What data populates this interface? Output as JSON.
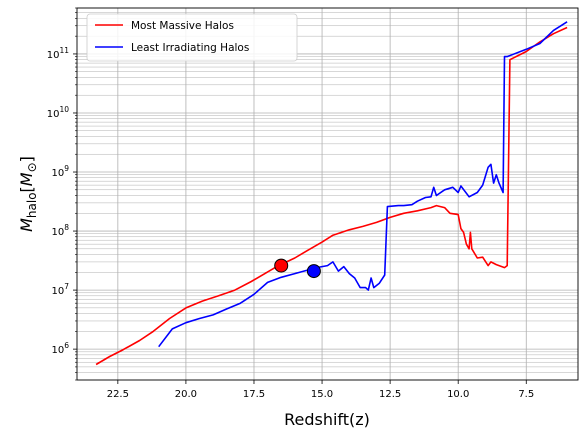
{
  "chart_data": {
    "type": "line",
    "title": "",
    "xlabel": "Redshift(z)",
    "ylabel": {
      "prefix": "M",
      "subscript": "halo",
      "bracket_open": "[",
      "inner": "M",
      "inner_sub": "⊙",
      "bracket_close": "]"
    },
    "x_inverted": true,
    "xlim": [
      24.0,
      5.6
    ],
    "ylim": [
      300000.0,
      600000000000.0
    ],
    "yscale": "log",
    "grid": true,
    "legend_position": "top-left",
    "x_ticks": [
      {
        "value": 22.5,
        "label": "22.5"
      },
      {
        "value": 20.0,
        "label": "20.0"
      },
      {
        "value": 17.5,
        "label": "17.5"
      },
      {
        "value": 15.0,
        "label": "15.0"
      },
      {
        "value": 12.5,
        "label": "12.5"
      },
      {
        "value": 10.0,
        "label": "10.0"
      },
      {
        "value": 7.5,
        "label": "7.5"
      }
    ],
    "y_ticks": [
      {
        "value": 1000000.0,
        "base": "10",
        "exp": "6"
      },
      {
        "value": 10000000.0,
        "base": "10",
        "exp": "7"
      },
      {
        "value": 100000000.0,
        "base": "10",
        "exp": "8"
      },
      {
        "value": 1000000000.0,
        "base": "10",
        "exp": "9"
      },
      {
        "value": 10000000000.0,
        "base": "10",
        "exp": "10"
      },
      {
        "value": 100000000000.0,
        "base": "10",
        "exp": "11"
      }
    ],
    "series": [
      {
        "name": "Most Massive Halos",
        "color": "#ff0000",
        "points": [
          [
            23.3,
            550000.0
          ],
          [
            22.8,
            750000.0
          ],
          [
            22.3,
            980000.0
          ],
          [
            21.7,
            1400000.0
          ],
          [
            21.2,
            2000000.0
          ],
          [
            20.6,
            3300000.0
          ],
          [
            20.0,
            5000000.0
          ],
          [
            19.4,
            6500000.0
          ],
          [
            18.8,
            8000000.0
          ],
          [
            18.2,
            10000000.0
          ],
          [
            17.6,
            14000000.0
          ],
          [
            17.1,
            19000000.0
          ],
          [
            16.6,
            26000000.0
          ],
          [
            16.0,
            35000000.0
          ],
          [
            15.5,
            48000000.0
          ],
          [
            15.0,
            65000000.0
          ],
          [
            14.6,
            85000000.0
          ],
          [
            14.0,
            105000000.0
          ],
          [
            13.5,
            120000000.0
          ],
          [
            13.0,
            140000000.0
          ],
          [
            12.5,
            170000000.0
          ],
          [
            12.0,
            200000000.0
          ],
          [
            11.5,
            220000000.0
          ],
          [
            11.0,
            250000000.0
          ],
          [
            10.8,
            270000000.0
          ],
          [
            10.5,
            250000000.0
          ],
          [
            10.3,
            200000000.0
          ],
          [
            10.0,
            190000000.0
          ],
          [
            9.9,
            110000000.0
          ],
          [
            9.8,
            95000000.0
          ],
          [
            9.7,
            60000000.0
          ],
          [
            9.6,
            50000000.0
          ],
          [
            9.55,
            95000000.0
          ],
          [
            9.5,
            50000000.0
          ],
          [
            9.3,
            35000000.0
          ],
          [
            9.1,
            36000000.0
          ],
          [
            8.9,
            26000000.0
          ],
          [
            8.8,
            30000000.0
          ],
          [
            8.6,
            27000000.0
          ],
          [
            8.4,
            25000000.0
          ],
          [
            8.3,
            24000000.0
          ],
          [
            8.2,
            26000000.0
          ],
          [
            8.1,
            80000000000.0
          ],
          [
            7.5,
            110000000000.0
          ],
          [
            7.0,
            160000000000.0
          ],
          [
            6.5,
            220000000000.0
          ],
          [
            6.0,
            280000000000.0
          ]
        ]
      },
      {
        "name": "Least Irradiating Halos",
        "color": "#0000ff",
        "points": [
          [
            21.0,
            1100000.0
          ],
          [
            20.5,
            2200000.0
          ],
          [
            20.0,
            2800000.0
          ],
          [
            19.5,
            3300000.0
          ],
          [
            19.0,
            3800000.0
          ],
          [
            18.5,
            4800000.0
          ],
          [
            18.0,
            6000000.0
          ],
          [
            17.5,
            8500000.0
          ],
          [
            17.0,
            13500000.0
          ],
          [
            16.5,
            16500000.0
          ],
          [
            16.0,
            19000000.0
          ],
          [
            15.5,
            22000000.0
          ],
          [
            15.2,
            24000000.0
          ],
          [
            14.8,
            26000000.0
          ],
          [
            14.6,
            30000000.0
          ],
          [
            14.4,
            21000000.0
          ],
          [
            14.2,
            25000000.0
          ],
          [
            14.0,
            19000000.0
          ],
          [
            13.8,
            16000000.0
          ],
          [
            13.6,
            11000000.0
          ],
          [
            13.4,
            11000000.0
          ],
          [
            13.3,
            10000000.0
          ],
          [
            13.2,
            16000000.0
          ],
          [
            13.1,
            11000000.0
          ],
          [
            12.9,
            13000000.0
          ],
          [
            12.7,
            18000000.0
          ],
          [
            12.6,
            260000000.0
          ],
          [
            12.2,
            270000000.0
          ],
          [
            12.0,
            270000000.0
          ],
          [
            11.7,
            280000000.0
          ],
          [
            11.5,
            320000000.0
          ],
          [
            11.2,
            370000000.0
          ],
          [
            11.0,
            380000000.0
          ],
          [
            10.9,
            550000000.0
          ],
          [
            10.8,
            400000000.0
          ],
          [
            10.5,
            500000000.0
          ],
          [
            10.2,
            550000000.0
          ],
          [
            10.0,
            450000000.0
          ],
          [
            9.9,
            580000000.0
          ],
          [
            9.6,
            380000000.0
          ],
          [
            9.3,
            450000000.0
          ],
          [
            9.1,
            600000000.0
          ],
          [
            8.9,
            1200000000.0
          ],
          [
            8.8,
            1350000000.0
          ],
          [
            8.7,
            650000000.0
          ],
          [
            8.6,
            900000000.0
          ],
          [
            8.5,
            650000000.0
          ],
          [
            8.35,
            450000000.0
          ],
          [
            8.3,
            90000000000.0
          ],
          [
            8.2,
            90000000000.0
          ],
          [
            7.5,
            120000000000.0
          ],
          [
            7.0,
            150000000000.0
          ],
          [
            6.5,
            250000000000.0
          ],
          [
            6.0,
            350000000000.0
          ]
        ]
      }
    ],
    "markers": [
      {
        "x": 16.5,
        "y": 26000000.0,
        "color": "#ff0000"
      },
      {
        "x": 15.3,
        "y": 21000000.0,
        "color": "#0000ff"
      }
    ]
  }
}
